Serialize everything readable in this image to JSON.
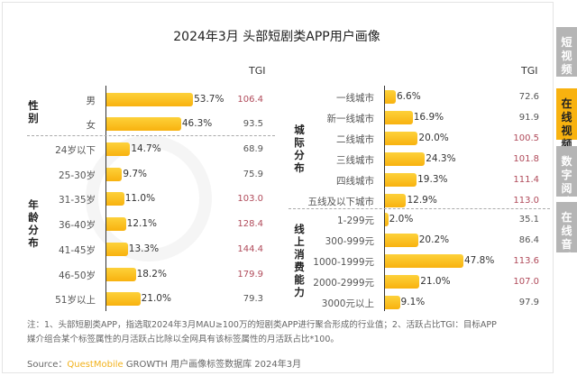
{
  "title": "2024年3月 头部短剧类APP用户画像",
  "watermark": "QUESTMOBILE",
  "tgi_header": "TGI",
  "tabs": [
    {
      "label": "短视频",
      "active": false
    },
    {
      "label": "在线视频",
      "active": true
    },
    {
      "label": "数字阅读",
      "active": false
    },
    {
      "label": "在线音乐",
      "active": false
    }
  ],
  "colors": {
    "bar": "#f8b20f",
    "tab_active": "#f8b20f",
    "tab_inactive": "#b5b5b5",
    "tgi_high": "#b04a5a"
  },
  "chart_data": [
    {
      "type": "bar",
      "orientation": "horizontal",
      "groups": [
        {
          "name": "性别",
          "categories": [
            "男",
            "女"
          ],
          "values": [
            53.7,
            46.3
          ],
          "tgi": [
            106.4,
            93.5
          ]
        },
        {
          "name": "年龄分布",
          "categories": [
            "24岁以下",
            "25-30岁",
            "31-35岁",
            "36-40岁",
            "41-45岁",
            "46-50岁",
            "51岁以上"
          ],
          "values": [
            14.7,
            9.7,
            11.0,
            12.1,
            13.3,
            18.2,
            21.0
          ],
          "tgi": [
            68.9,
            75.9,
            103.0,
            128.4,
            144.4,
            179.9,
            79.3
          ]
        }
      ]
    },
    {
      "type": "bar",
      "orientation": "horizontal",
      "groups": [
        {
          "name": "城际分布",
          "categories": [
            "一线城市",
            "新一线城市",
            "二线城市",
            "三线城市",
            "四线城市",
            "五线及以下城市"
          ],
          "values": [
            6.6,
            16.9,
            20.0,
            24.3,
            19.3,
            12.9
          ],
          "tgi": [
            72.6,
            91.9,
            100.5,
            101.8,
            111.4,
            113.0
          ]
        },
        {
          "name": "线上消费能力",
          "categories": [
            "1-299元",
            "300-999元",
            "1000-1999元",
            "2000-2999元",
            "3000元以上"
          ],
          "values": [
            2.0,
            20.2,
            47.8,
            21.0,
            9.1
          ],
          "tgi": [
            35.1,
            86.4,
            113.6,
            107.0,
            97.9
          ]
        }
      ]
    }
  ],
  "notes": [
    "注：1、头部短剧类APP，指选取2024年3月MAU≥100万的短剧类APP进行聚合形成的行业值；2、活跃占比TGI：目标APP",
    "媒介组合某个标签属性的月活跃占比除以全网具有该标签属性的月活跃占比*100。"
  ],
  "source": {
    "prefix": "Source：",
    "brand": "QuestMobile",
    "rest": " GROWTH 用户画像标签数据库 2024年3月"
  }
}
